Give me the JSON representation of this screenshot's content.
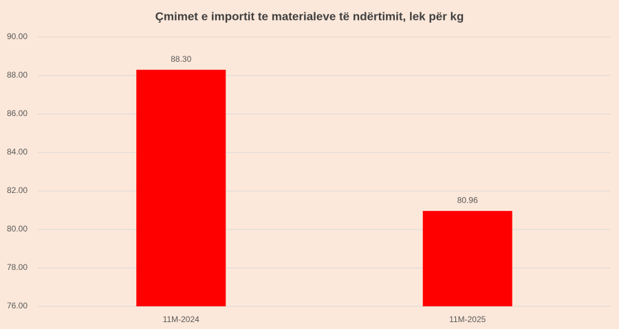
{
  "chart_data": {
    "type": "bar",
    "title": "Çmimet e importit te materialeve të ndërtimit, lek për kg",
    "categories": [
      "11M-2024",
      "11M-2025"
    ],
    "values": [
      88.3,
      80.96
    ],
    "value_labels": [
      "88.30",
      "80.96"
    ],
    "color": "#ff0000",
    "ylim": [
      76,
      90
    ],
    "yticks": [
      {
        "value": 76,
        "label": "76.00"
      },
      {
        "value": 78,
        "label": "78.00"
      },
      {
        "value": 80,
        "label": "80.00"
      },
      {
        "value": 82,
        "label": "82.00"
      },
      {
        "value": 84,
        "label": "84.00"
      },
      {
        "value": 86,
        "label": "86.00"
      },
      {
        "value": 88,
        "label": "88.00"
      },
      {
        "value": 90,
        "label": "90.00"
      }
    ],
    "grid": true
  }
}
